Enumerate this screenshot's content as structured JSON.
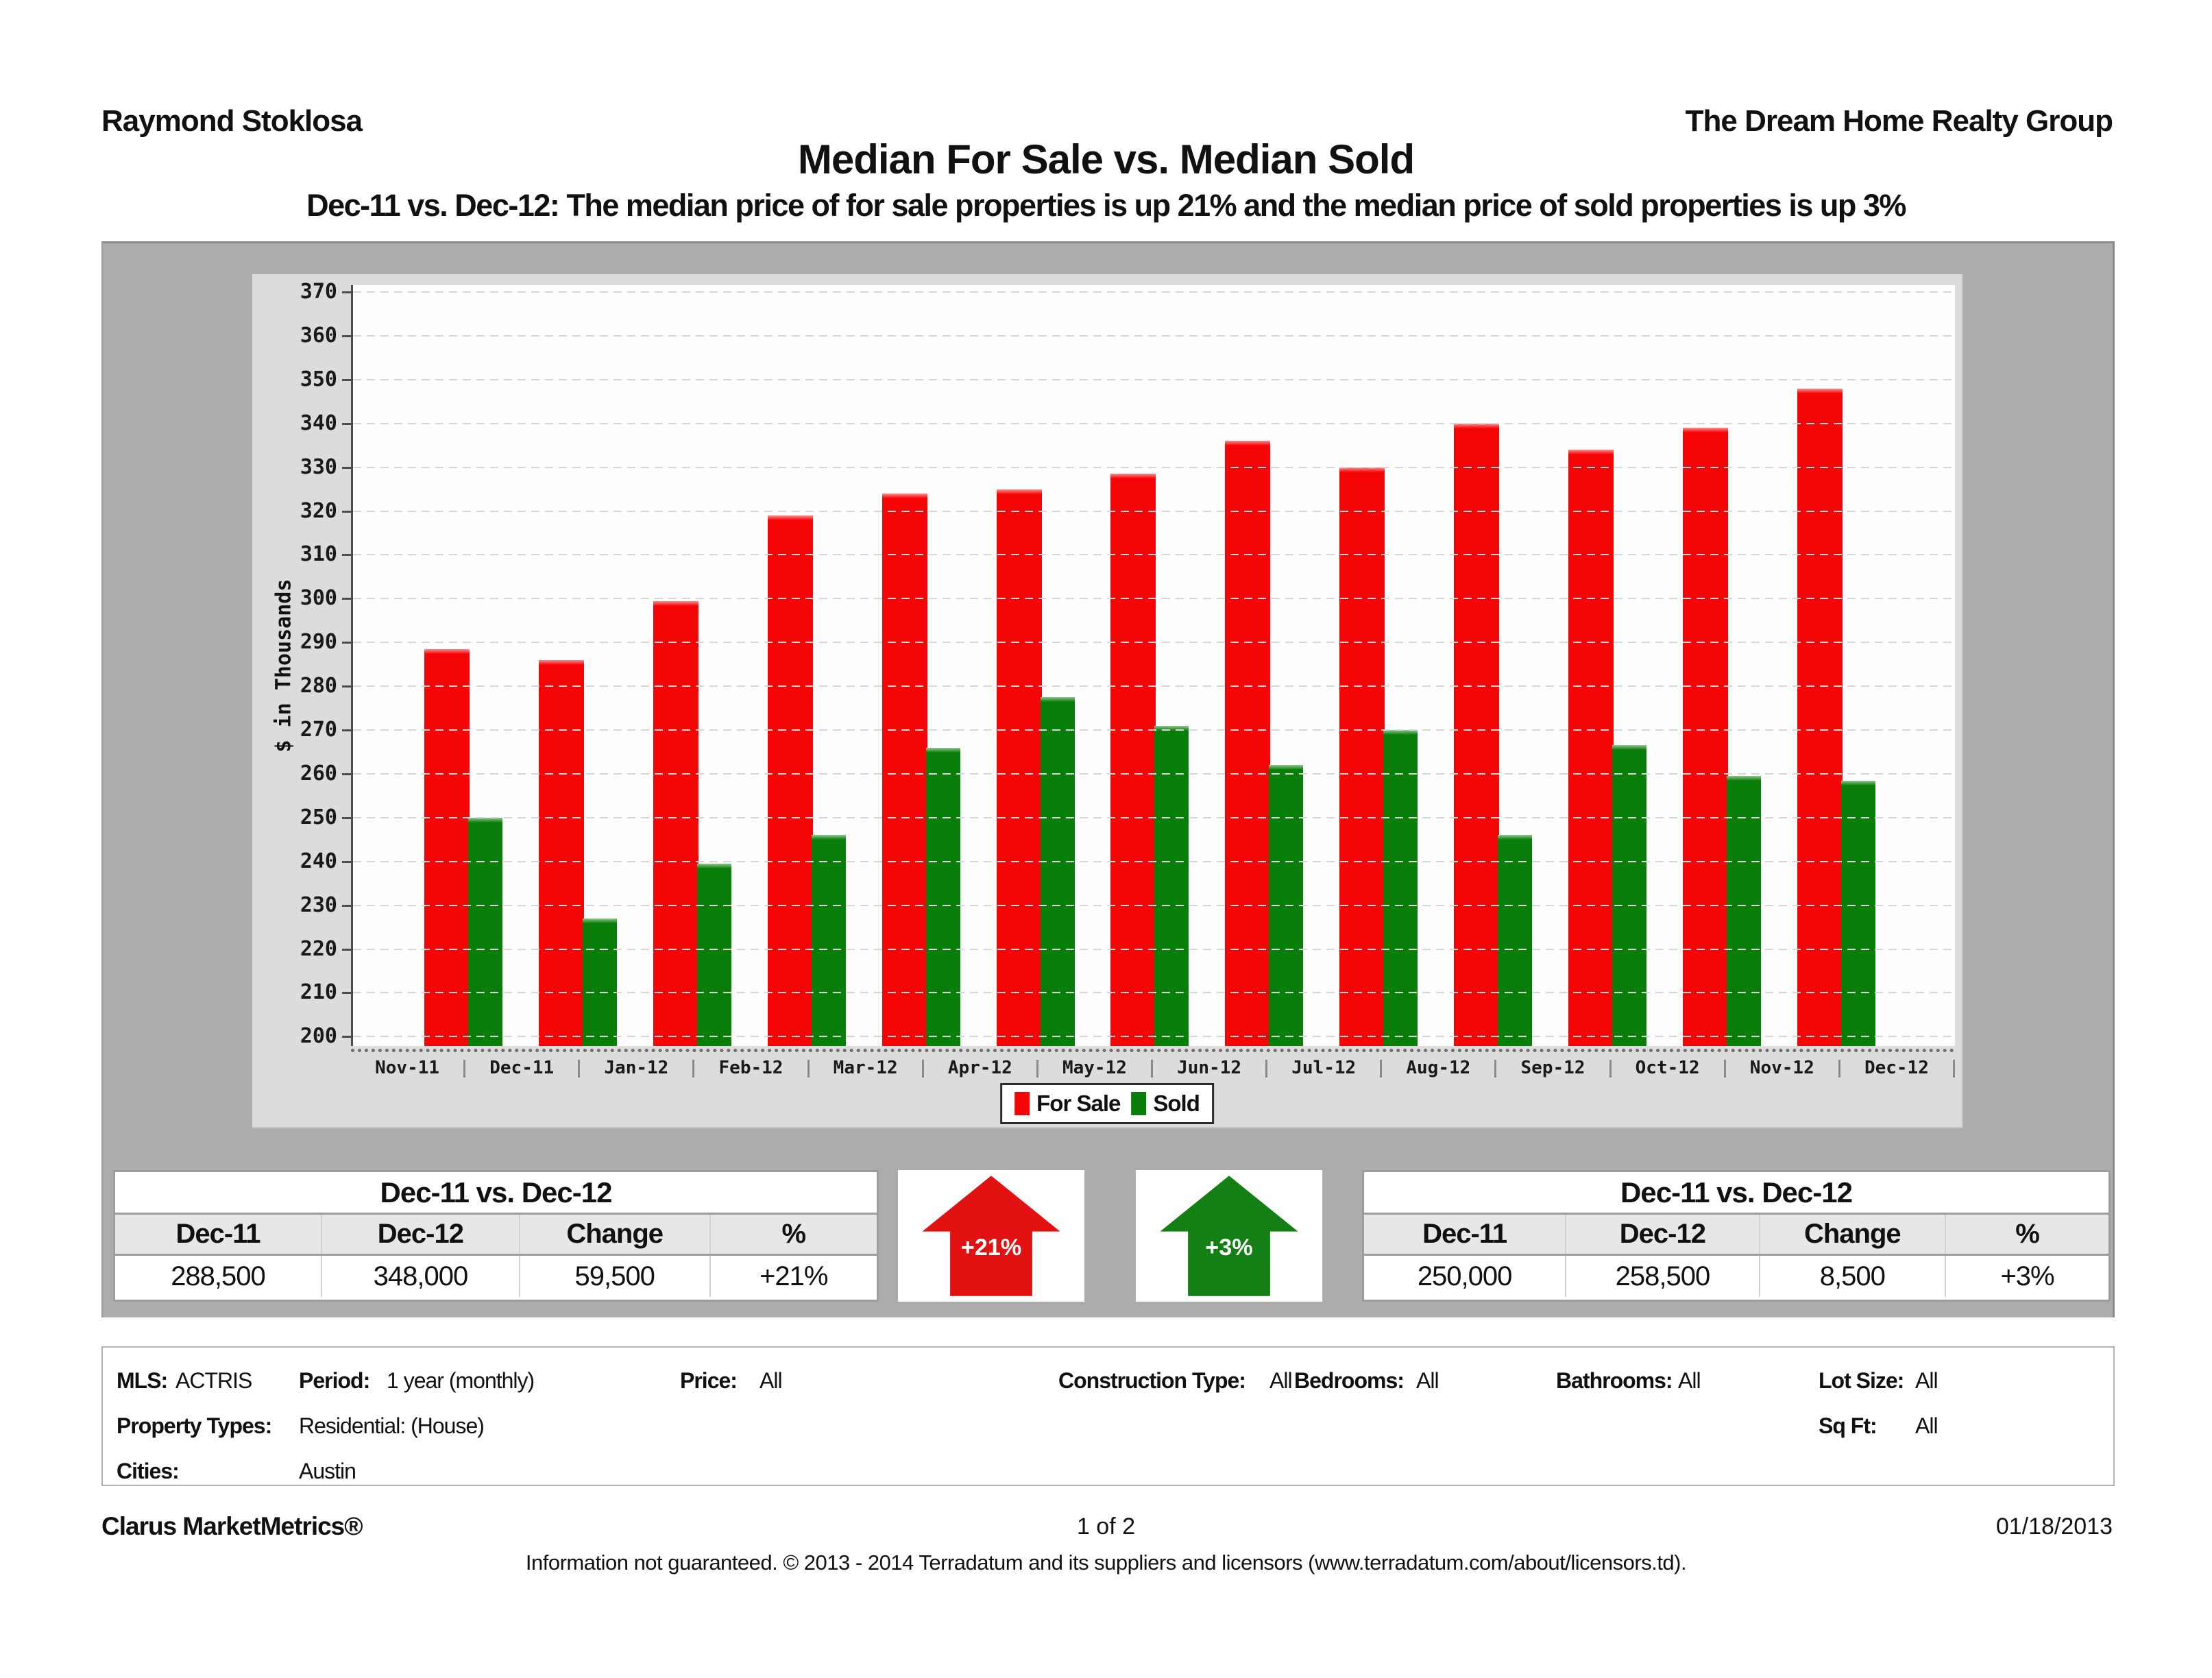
{
  "header": {
    "agent_name": "Raymond Stoklosa",
    "company": "The Dream Home Realty Group"
  },
  "title": "Median For Sale vs. Median Sold",
  "subtitle": "Dec-11 vs. Dec-12:  The median price of for sale properties is up 21% and the median price of sold properties is up 3%",
  "chart_data": {
    "type": "bar",
    "title": "Median For Sale vs. Median Sold",
    "xlabel": "",
    "ylabel": "$ in Thousands",
    "ylim": [
      200,
      370
    ],
    "ytick_step": 10,
    "grid": "horizontal-dashed",
    "legend_position": "bottom",
    "categories": [
      "Nov-11",
      "Dec-11",
      "Jan-12",
      "Feb-12",
      "Mar-12",
      "Apr-12",
      "May-12",
      "Jun-12",
      "Jul-12",
      "Aug-12",
      "Sep-12",
      "Oct-12",
      "Nov-12",
      "Dec-12"
    ],
    "series": [
      {
        "name": "For Sale",
        "color": "#f50505",
        "values": [
          null,
          288.5,
          286,
          299.5,
          319,
          324,
          325,
          328.5,
          336,
          330,
          340,
          334,
          339,
          348
        ]
      },
      {
        "name": "Sold",
        "color": "#0a7e0a",
        "values": [
          null,
          250,
          227,
          239.5,
          246,
          266,
          277.5,
          271,
          262,
          270,
          246,
          266.5,
          259.5,
          258.5
        ]
      }
    ]
  },
  "summary_tables": {
    "for_sale": {
      "title": "Dec-11 vs. Dec-12",
      "headers": [
        "Dec-11",
        "Dec-12",
        "Change",
        "%"
      ],
      "row": [
        "288,500",
        "348,000",
        "59,500",
        "+21%"
      ]
    },
    "sold": {
      "title": "Dec-11 vs. Dec-12",
      "headers": [
        "Dec-11",
        "Dec-12",
        "Change",
        "%"
      ],
      "row": [
        "250,000",
        "258,500",
        "8,500",
        "+3%"
      ]
    }
  },
  "badges": {
    "for_sale_change": "+21%",
    "sold_change": "+3%"
  },
  "criteria": {
    "mls_label": "MLS:",
    "mls": "ACTRIS",
    "period_label": "Period:",
    "period": "1 year (monthly)",
    "price_label": "Price:",
    "price": "All",
    "construction_label": "Construction Type:",
    "construction": "All",
    "bedrooms_label": "Bedrooms:",
    "bedrooms": "All",
    "bathrooms_label": "Bathrooms:",
    "bathrooms": "All",
    "lot_label": "Lot Size:",
    "lot": "All",
    "property_types_label": "Property Types:",
    "property_types": "Residential: (House)",
    "sqft_label": "Sq Ft:",
    "sqft": "All",
    "cities_label": "Cities:",
    "cities": "Austin"
  },
  "footer": {
    "brand": "Clarus MarketMetrics®",
    "page": "1 of 2",
    "date": "01/18/2013",
    "disclaimer": "Information not guaranteed.  © 2013 - 2014 Terradatum and its suppliers and licensors (www.terradatum.com/about/licensors.td)."
  },
  "colors": {
    "for_sale_red": "#f50505",
    "sold_green": "#0a7e0a",
    "arrow_red": "#e31212",
    "arrow_green": "#147f14",
    "container_gray": "#acacac",
    "panel_gray": "#dcdcdc",
    "table_header_bg": "#e7e7e7"
  }
}
